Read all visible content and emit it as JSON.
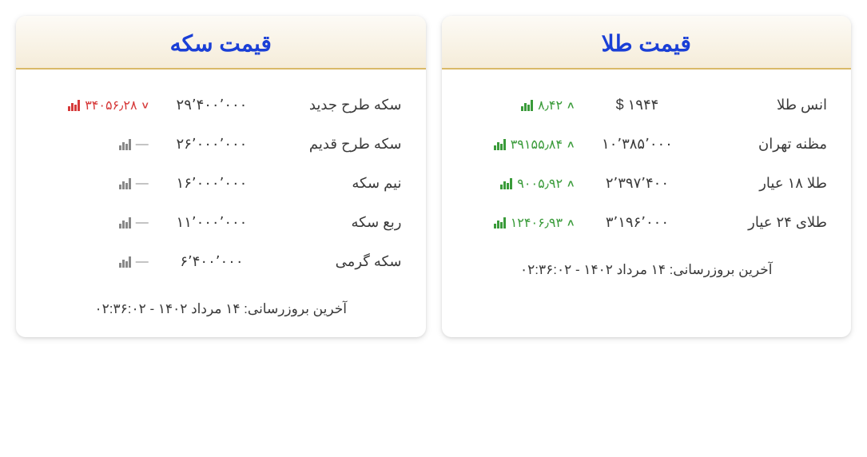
{
  "gold": {
    "title": "قیمت طلا",
    "rows": [
      {
        "name": "انس طلا",
        "price": "۱۹۴۴ $",
        "change": "۸٫۴۲",
        "dir": "up"
      },
      {
        "name": "مظنه تهران",
        "price": "۱۰٬۳۸۵٬۰۰۰",
        "change": "۳۹۱۵۵٫۸۴",
        "dir": "up"
      },
      {
        "name": "طلا ۱۸ عیار",
        "price": "۲٬۳۹۷٬۴۰۰",
        "change": "۹۰۰۵٫۹۲",
        "dir": "up"
      },
      {
        "name": "طلای ۲۴ عیار",
        "price": "۳٬۱۹۶٬۰۰۰",
        "change": "۱۲۴۰۶٫۹۳",
        "dir": "up"
      }
    ],
    "footer": "آخرین بروزرسانی: ۱۴ مرداد ۱۴۰۲ - ۰۲:۳۶:۰۲"
  },
  "coin": {
    "title": "قیمت سکه",
    "rows": [
      {
        "name": "سکه طرح جدید",
        "price": "۲۹٬۴۰۰٬۰۰۰",
        "change": "۳۴۰۵۶٫۲۸",
        "dir": "down"
      },
      {
        "name": "سکه طرح قدیم",
        "price": "۲۶٬۰۰۰٬۰۰۰",
        "change": "—",
        "dir": "none"
      },
      {
        "name": "نیم سکه",
        "price": "۱۶٬۰۰۰٬۰۰۰",
        "change": "—",
        "dir": "none"
      },
      {
        "name": "ربع سکه",
        "price": "۱۱٬۰۰۰٬۰۰۰",
        "change": "—",
        "dir": "none"
      },
      {
        "name": "سکه گرمی",
        "price": "۶٬۴۰۰٬۰۰۰",
        "change": "—",
        "dir": "none"
      }
    ],
    "footer": "آخرین بروزرسانی: ۱۴ مرداد ۱۴۰۲ - ۰۲:۳۶:۰۲"
  },
  "colors": {
    "title": "#1a3fd6",
    "header_border": "#d9b968",
    "up": "#3a9b3a",
    "down": "#d63a3a",
    "neutral": "#888888",
    "text": "#3a3a3a"
  },
  "arrows": {
    "up": "˄",
    "down": "˅"
  }
}
